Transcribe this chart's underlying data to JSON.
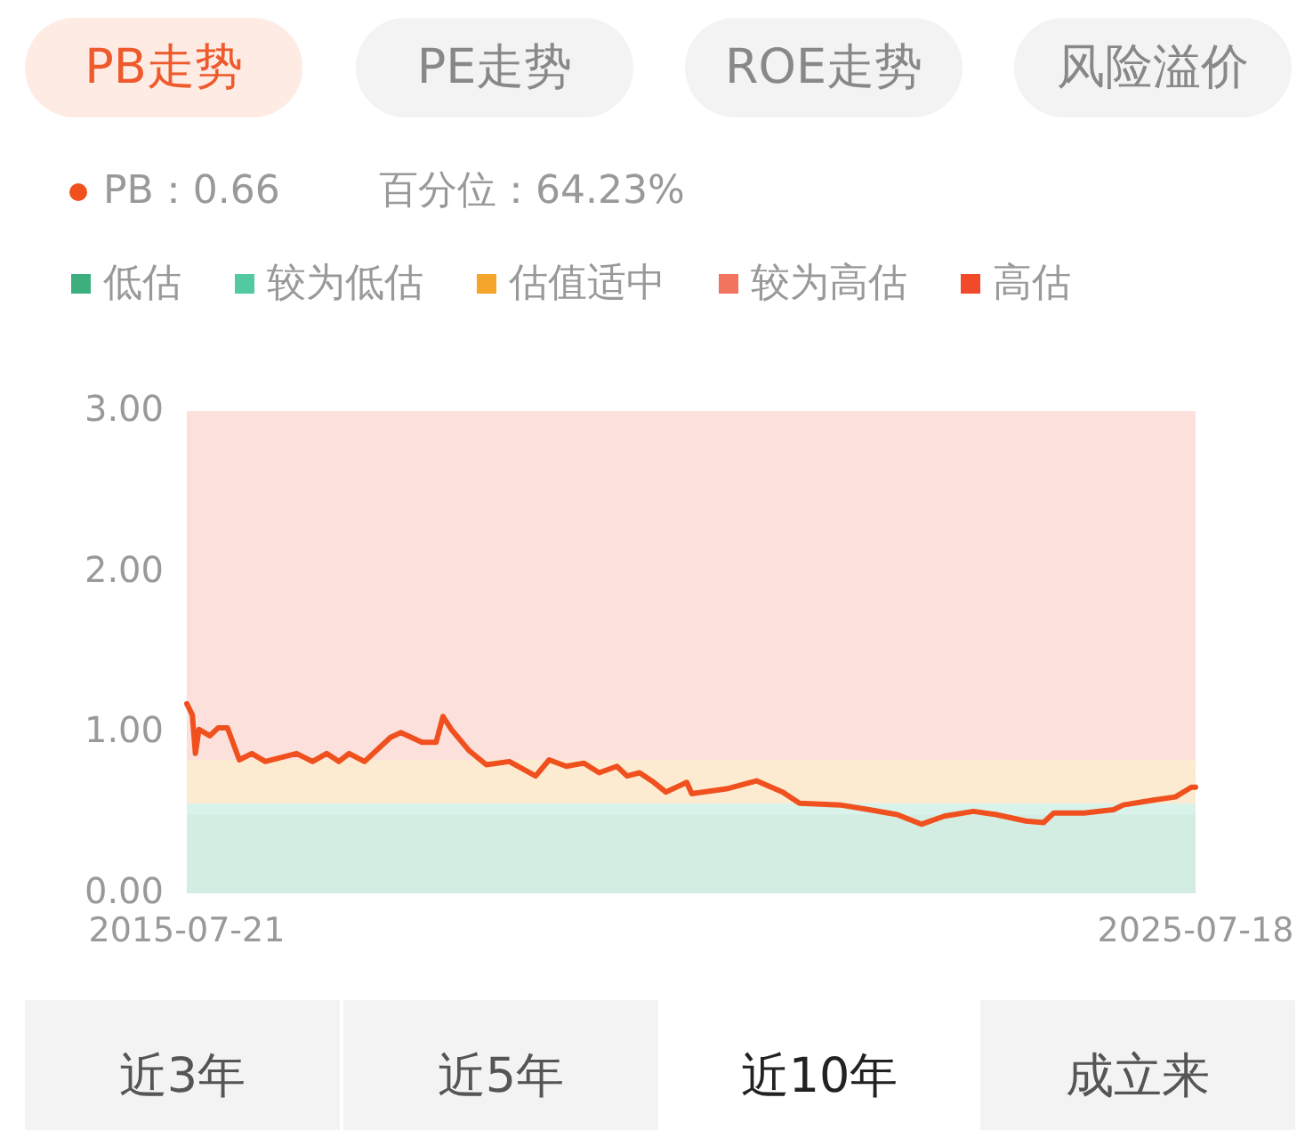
{
  "chart_data": {
    "type": "line",
    "x": [
      "2015-07-21",
      "2015-08-10",
      "2015-08-21",
      "2015-09-03",
      "2015-10-12",
      "2015-11-12",
      "2015-12-15",
      "2016-01-27",
      "2016-03-12",
      "2016-04-30",
      "2016-08-21",
      "2016-10-18",
      "2016-12-08",
      "2017-01-21",
      "2017-02-27",
      "2017-04-24",
      "2017-07-27",
      "2017-09-02",
      "2017-11-18",
      "2018-01-08",
      "2018-02-02",
      "2018-03-04",
      "2018-05-06",
      "2018-07-09",
      "2018-09-30",
      "2019-01-03",
      "2019-02-21",
      "2019-04-24",
      "2019-06-27",
      "2019-08-21",
      "2019-10-24",
      "2019-11-30",
      "2020-01-14",
      "2020-03-06",
      "2020-04-18",
      "2020-07-03",
      "2020-07-21",
      "2020-11-24",
      "2021-03-12",
      "2021-06-15",
      "2021-08-15",
      "2022-01-08",
      "2022-04-24",
      "2022-08-03",
      "2022-10-30",
      "2023-01-21",
      "2023-05-06",
      "2023-07-27",
      "2023-11-12",
      "2024-01-15",
      "2024-02-21",
      "2024-06-09",
      "2024-09-24",
      "2024-10-30",
      "2025-02-15",
      "2025-05-06",
      "2025-07-03",
      "2025-07-18"
    ],
    "series": [
      {
        "color": "#f0501e",
        "values": [
          1.18,
          1.11,
          0.87,
          1.02,
          0.98,
          1.03,
          1.03,
          0.83,
          0.87,
          0.82,
          0.87,
          0.82,
          0.87,
          0.82,
          0.87,
          0.82,
          0.97,
          1.0,
          0.94,
          0.94,
          1.1,
          1.02,
          0.89,
          0.8,
          0.82,
          0.73,
          0.83,
          0.79,
          0.81,
          0.75,
          0.79,
          0.73,
          0.75,
          0.69,
          0.63,
          0.69,
          0.62,
          0.65,
          0.7,
          0.63,
          0.56,
          0.55,
          0.52,
          0.49,
          0.43,
          0.48,
          0.51,
          0.49,
          0.45,
          0.44,
          0.5,
          0.5,
          0.52,
          0.55,
          0.58,
          0.6,
          0.66,
          0.66
        ]
      }
    ],
    "xlim": [
      "2015-07-21",
      "2025-07-18"
    ],
    "xticks": [
      "2015-07-21",
      "2025-07-18"
    ],
    "ylim": [
      0,
      3
    ],
    "yticks": [
      {
        "value": 0,
        "label": "0.00"
      },
      {
        "value": 1,
        "label": "1.00"
      },
      {
        "value": 2,
        "label": "2.00"
      },
      {
        "value": 3,
        "label": "3.00"
      }
    ],
    "bands": [
      {
        "axis": "y",
        "from": 0,
        "to": 0.49,
        "label": "低估",
        "color": "#3daf7e"
      },
      {
        "axis": "y",
        "from": 0.49,
        "to": 0.56,
        "label": "较为低估",
        "color": "#52c9a0"
      },
      {
        "axis": "y",
        "from": 0.56,
        "to": 0.83,
        "label": "估值适中",
        "color": "#f5a42c"
      },
      {
        "axis": "y",
        "from": 0.83,
        "to": 3,
        "label": "较为高估",
        "color": "#f2735e"
      }
    ],
    "legend": "top",
    "annotations": [
      "PB走势",
      "PE走势",
      "ROE走势",
      "风险溢价",
      "PB：0.66",
      "百分位：64.23%",
      "近3年",
      "近5年",
      "近10年",
      "成立来",
      "高估"
    ]
  }
}
